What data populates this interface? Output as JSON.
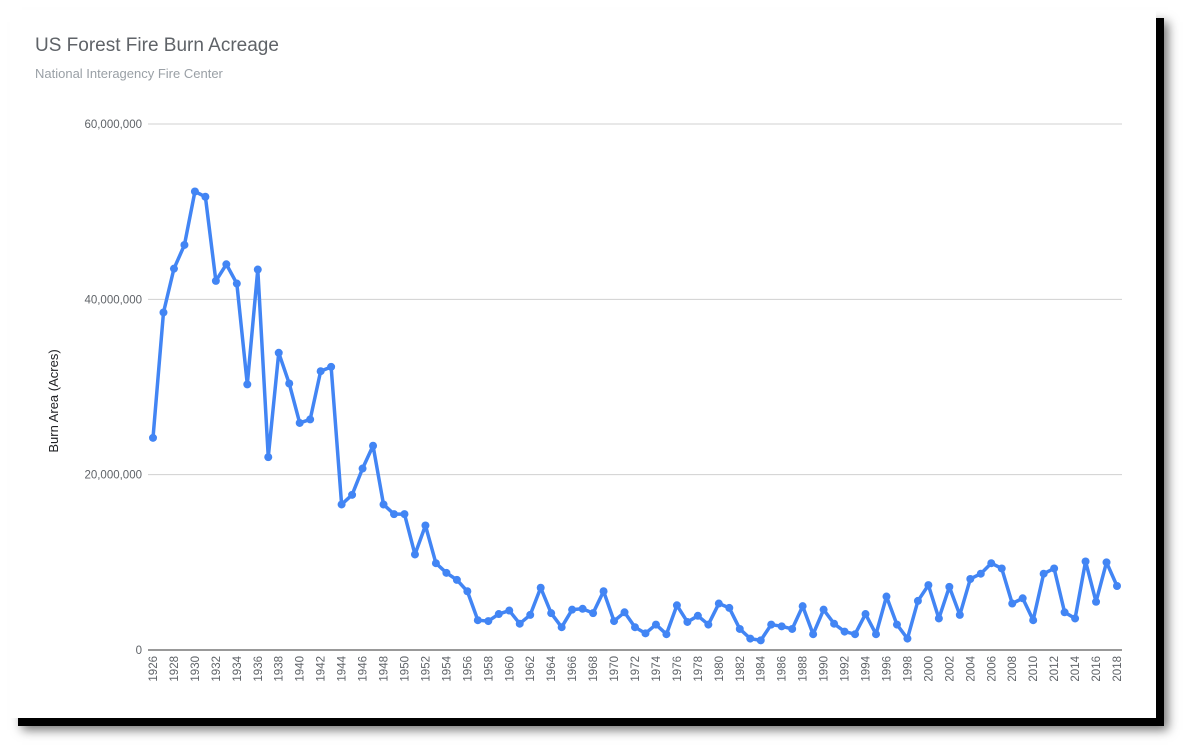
{
  "chart_data": {
    "type": "line",
    "title": "US Forest Fire Burn Acreage",
    "subtitle": "National Interagency Fire Center",
    "xlabel": "",
    "ylabel": "Burn Area (Acres)",
    "ylim": [
      0,
      60000000
    ],
    "y_ticks": [
      0,
      20000000,
      40000000,
      60000000
    ],
    "y_tick_labels": [
      "0",
      "20,000,000",
      "40,000,000",
      "60,000,000"
    ],
    "x_tick_labels": [
      "1926",
      "1928",
      "1930",
      "1932",
      "1934",
      "1936",
      "1938",
      "1940",
      "1942",
      "1944",
      "1946",
      "1948",
      "1950",
      "1952",
      "1954",
      "1956",
      "1958",
      "1960",
      "1962",
      "1964",
      "1966",
      "1968",
      "1970",
      "1972",
      "1974",
      "1976",
      "1978",
      "1980",
      "1982",
      "1984",
      "1986",
      "1988",
      "1990",
      "1992",
      "1994",
      "1996",
      "1998",
      "2000",
      "2002",
      "2004",
      "2006",
      "2008",
      "2010",
      "2012",
      "2014",
      "2016",
      "2018"
    ],
    "grid": true,
    "legend": "none",
    "series_color": "#4285f4",
    "x": [
      1926,
      1927,
      1928,
      1929,
      1930,
      1931,
      1932,
      1933,
      1934,
      1935,
      1936,
      1937,
      1938,
      1939,
      1940,
      1941,
      1942,
      1943,
      1944,
      1945,
      1946,
      1947,
      1948,
      1949,
      1950,
      1951,
      1952,
      1953,
      1954,
      1955,
      1956,
      1957,
      1958,
      1959,
      1960,
      1961,
      1962,
      1963,
      1964,
      1965,
      1966,
      1967,
      1968,
      1969,
      1970,
      1971,
      1972,
      1973,
      1974,
      1975,
      1976,
      1977,
      1978,
      1979,
      1980,
      1981,
      1982,
      1983,
      1984,
      1985,
      1986,
      1987,
      1988,
      1989,
      1990,
      1991,
      1992,
      1993,
      1994,
      1995,
      1996,
      1997,
      1998,
      1999,
      2000,
      2001,
      2002,
      2003,
      2004,
      2005,
      2006,
      2007,
      2008,
      2009,
      2010,
      2011,
      2012,
      2013,
      2014,
      2015,
      2016,
      2017,
      2018
    ],
    "series": [
      {
        "values": [
          24200000,
          38500000,
          43500000,
          46200000,
          52300000,
          51700000,
          42100000,
          44000000,
          41800000,
          30300000,
          43400000,
          22000000,
          33900000,
          30400000,
          25900000,
          26300000,
          31800000,
          32300000,
          16600000,
          17700000,
          20700000,
          23300000,
          16600000,
          15500000,
          15500000,
          10900000,
          14200000,
          9900000,
          8800000,
          8000000,
          6700000,
          3400000,
          3300000,
          4100000,
          4500000,
          3000000,
          4000000,
          7100000,
          4200000,
          2600000,
          4600000,
          4700000,
          4200000,
          6700000,
          3300000,
          4300000,
          2600000,
          1900000,
          2900000,
          1800000,
          5100000,
          3200000,
          3900000,
          2900000,
          5300000,
          4800000,
          2400000,
          1300000,
          1100000,
          2900000,
          2700000,
          2400000,
          5000000,
          1800000,
          4600000,
          3000000,
          2100000,
          1800000,
          4100000,
          1800000,
          6100000,
          2900000,
          1300000,
          5600000,
          7400000,
          3600000,
          7200000,
          4000000,
          8100000,
          8700000,
          9900000,
          9300000,
          5300000,
          5900000,
          3400000,
          8700000,
          9300000,
          4300000,
          3600000,
          10100000,
          5500000,
          10000000,
          7300000
        ]
      }
    ]
  }
}
